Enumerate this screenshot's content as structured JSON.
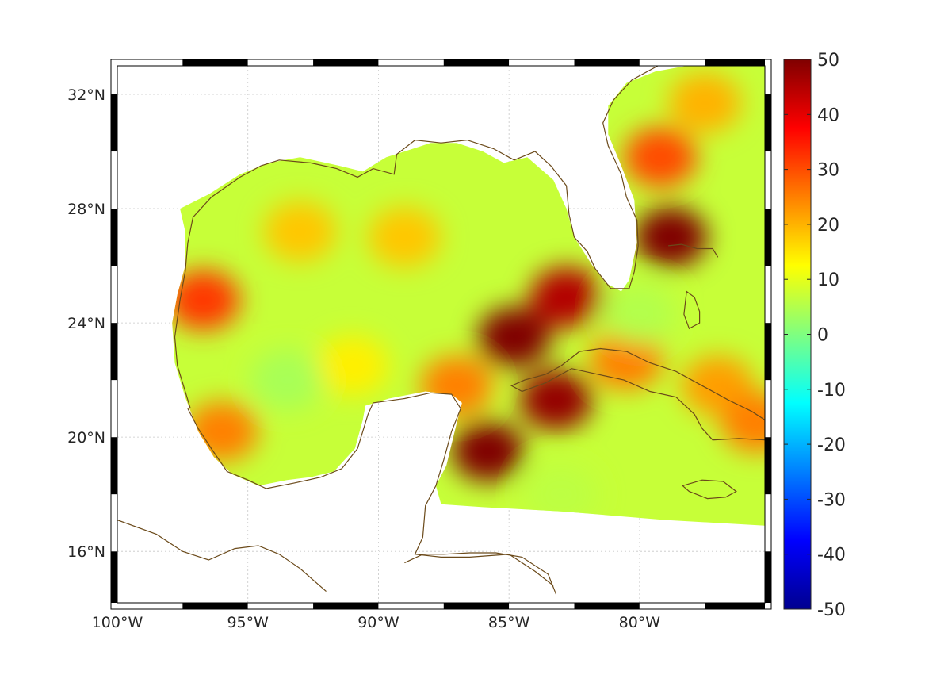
{
  "map": {
    "lon_range": [
      -100,
      -75.2
    ],
    "lat_range": [
      14.2,
      33
    ],
    "x_ticks": [
      {
        "lon": -100,
        "label": "100°W"
      },
      {
        "lon": -95,
        "label": "95°W"
      },
      {
        "lon": -90,
        "label": "90°W"
      },
      {
        "lon": -85,
        "label": "85°W"
      },
      {
        "lon": -80,
        "label": "80°W"
      }
    ],
    "y_ticks": [
      {
        "lat": 16,
        "label": "16°N"
      },
      {
        "lat": 20,
        "label": "20°N"
      },
      {
        "lat": 24,
        "label": "24°N"
      },
      {
        "lat": 28,
        "label": "28°N"
      },
      {
        "lat": 32,
        "label": "32°N"
      }
    ],
    "grid": true,
    "coastline_color": "#6b4a1a",
    "background_field_value": 7,
    "field_features": [
      {
        "lon": -84.8,
        "lat": 23.5,
        "value": 50
      },
      {
        "lon": -85.8,
        "lat": 19.5,
        "value": 50
      },
      {
        "lon": -83.2,
        "lat": 21.3,
        "value": 48
      },
      {
        "lon": -82.8,
        "lat": 24.9,
        "value": 45
      },
      {
        "lon": -78.8,
        "lat": 27.0,
        "value": 50
      },
      {
        "lon": -79.2,
        "lat": 29.8,
        "value": 30
      },
      {
        "lon": -93.0,
        "lat": 27.2,
        "value": 18
      },
      {
        "lon": -89.0,
        "lat": 27.0,
        "value": 18
      },
      {
        "lon": -96.7,
        "lat": 24.8,
        "value": 32
      },
      {
        "lon": -96.0,
        "lat": 20.2,
        "value": 25
      },
      {
        "lon": -77.5,
        "lat": 31.7,
        "value": 20
      },
      {
        "lon": -80.5,
        "lat": 22.7,
        "value": 25
      },
      {
        "lon": -77.0,
        "lat": 21.8,
        "value": 22
      },
      {
        "lon": -75.5,
        "lat": 20.5,
        "value": 25
      },
      {
        "lon": -87.0,
        "lat": 21.8,
        "value": 25
      },
      {
        "lon": -91.0,
        "lat": 22.5,
        "value": 14
      },
      {
        "lon": -93.5,
        "lat": 22.0,
        "value": 4
      },
      {
        "lon": -80.0,
        "lat": 24.3,
        "value": 5
      },
      {
        "lon": -83.0,
        "lat": 18.0,
        "value": 6
      }
    ]
  },
  "colorbar": {
    "min": -50,
    "max": 50,
    "ticks": [
      "50",
      "40",
      "30",
      "20",
      "10",
      "0",
      "-10",
      "-20",
      "-30",
      "-40",
      "-50"
    ],
    "colormap": "jet"
  }
}
